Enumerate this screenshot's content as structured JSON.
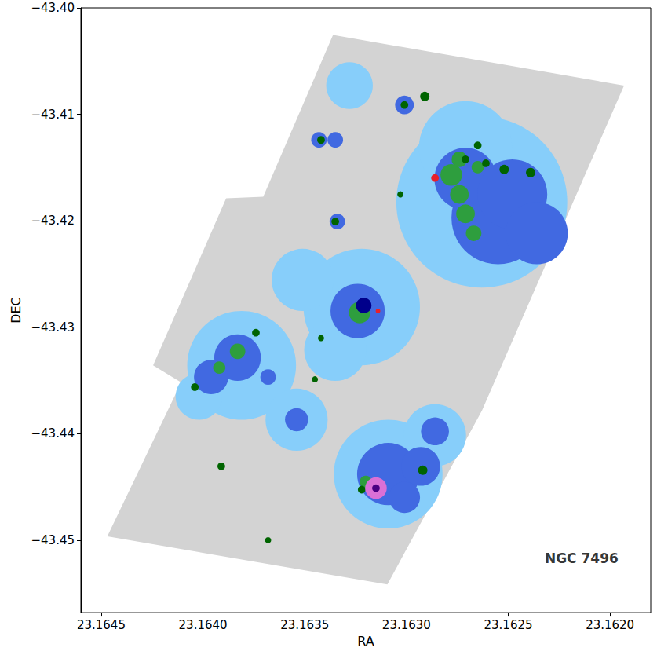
{
  "chart_data": {
    "type": "scatter",
    "x_label": "RA",
    "y_label": "DEC",
    "xlim": [
      23.1618,
      23.1646
    ],
    "ylim": [
      -43.4568,
      -43.4
    ],
    "xticks": [
      23.1645,
      {
        "value": 23.164,
        "label": "23.1640"
      },
      23.1635,
      {
        "value": 23.163,
        "label": "23.1630"
      },
      23.1625,
      {
        "value": 23.162,
        "label": "23.1620"
      }
    ],
    "yticks": [
      {
        "value": -43.45,
        "label": "−43.45"
      },
      {
        "value": -43.44,
        "label": "−43.44"
      },
      {
        "value": -43.43,
        "label": "−43.43"
      },
      {
        "value": -43.42,
        "label": "−43.42"
      },
      {
        "value": -43.41,
        "label": "−43.41"
      },
      {
        "value": -43.4,
        "label": "−43.40"
      }
    ],
    "grid": false,
    "annotations": [
      {
        "text": "NGC 7496",
        "x": 23.16214,
        "y": -43.45168
      }
    ],
    "series": [
      {
        "type": "polygon",
        "color": "#d3d3d3",
        "x": [
          23.163361,
          23.161931,
          23.162629,
          23.163094,
          23.16447,
          23.164107,
          23.164245,
          23.163886,
          23.163704
        ],
        "y": [
          -43.40255,
          -43.4073,
          -43.43781,
          -43.45416,
          -43.44964,
          -43.43518,
          -43.43358,
          -43.41788,
          -43.41774
        ]
      },
      {
        "type": "circle",
        "color": "#87cefa",
        "x": [
          23.16322,
          23.16263,
          23.16271,
          23.16381,
          23.16309,
          23.16286,
          23.16351,
          23.16354,
          23.16328,
          23.16402,
          23.16335
        ],
        "y": [
          -43.4281,
          -43.41825,
          -43.41314,
          -43.43358,
          -43.44379,
          -43.44014,
          -43.42555,
          -43.43868,
          -43.4073,
          -43.4365,
          -43.43212
        ],
        "radius": [
          0.00547,
          0.00803,
          0.00438,
          0.00511,
          0.00511,
          0.00292,
          0.00292,
          0.00292,
          0.00219,
          0.00219,
          0.00292
        ]
      },
      {
        "type": "circle",
        "color": "#4169e1",
        "x": [
          23.16324,
          23.16255,
          23.16271,
          23.16248,
          23.16236,
          23.16383,
          23.16396,
          23.16309,
          23.16293,
          23.16301,
          23.16301,
          23.16343,
          23.16335,
          23.16334,
          23.16286,
          23.16354,
          23.16368
        ],
        "y": [
          -43.42847,
          -43.41971,
          -43.41606,
          -43.41752,
          -43.42117,
          -43.43285,
          -43.43467,
          -43.44379,
          -43.44306,
          -43.44598,
          -43.40912,
          -43.41241,
          -43.41241,
          -43.42007,
          -43.43978,
          -43.43868,
          -43.43467
        ],
        "radius": [
          0.00255,
          0.00438,
          0.00292,
          0.00328,
          0.00292,
          0.00219,
          0.00161,
          0.00292,
          0.00182,
          0.00146,
          0.00088,
          0.00073,
          0.00073,
          0.00073,
          0.00131,
          0.00109,
          0.00073
        ]
      },
      {
        "type": "circle",
        "color": "#2e9e3e",
        "x": [
          23.16323,
          23.16278,
          23.16274,
          23.16271,
          23.16267,
          23.16274,
          23.16265,
          23.16383,
          23.16392,
          23.1632
        ],
        "y": [
          -43.42861,
          -43.41569,
          -43.41752,
          -43.41934,
          -43.42117,
          -43.41423,
          -43.41496,
          -43.43226,
          -43.43379,
          -43.44452
        ],
        "radius": [
          0.00102,
          0.00102,
          0.00088,
          0.00088,
          0.00073,
          0.00073,
          0.00058,
          0.00073,
          0.00058,
          0.00058
        ]
      },
      {
        "type": "circle",
        "color": "#006400",
        "x": [
          23.16291,
          23.16301,
          23.16265,
          23.16252,
          23.16239,
          23.16261,
          23.16335,
          23.16342,
          23.16374,
          23.16342,
          23.16404,
          23.16303,
          23.16345,
          23.16391,
          23.16368,
          23.16292,
          23.16322,
          23.16271
        ],
        "y": [
          -43.40832,
          -43.40912,
          -43.41292,
          -43.41518,
          -43.41547,
          -43.4146,
          -43.42007,
          -43.41241,
          -43.43051,
          -43.43102,
          -43.43562,
          -43.41752,
          -43.43489,
          -43.44306,
          -43.45,
          -43.44343,
          -43.44525,
          -43.41423
        ],
        "radius": [
          0.00044,
          0.00036,
          0.00036,
          0.00044,
          0.00044,
          0.00036,
          0.00036,
          0.00036,
          0.00036,
          0.00029,
          0.00036,
          0.00029,
          0.00029,
          0.00036,
          0.00029,
          0.00044,
          0.00036,
          0.00036
        ]
      },
      {
        "type": "circle",
        "color": "#00008b",
        "x": [
          23.16321
        ],
        "y": [
          -43.42795
        ],
        "radius": [
          0.00073
        ]
      },
      {
        "type": "circle",
        "color": "#e8202a",
        "x": [
          23.16286,
          23.16314
        ],
        "y": [
          -43.41598,
          -43.42847
        ],
        "radius": [
          0.00036,
          0.00022
        ]
      },
      {
        "type": "circle",
        "color": "#da70d6",
        "x": [
          23.16315
        ],
        "y": [
          -43.44511
        ],
        "radius": [
          0.00102
        ]
      },
      {
        "type": "circle",
        "color": "#4b0082",
        "x": [
          23.16315
        ],
        "y": [
          -43.44511
        ],
        "radius": [
          0.00036
        ]
      }
    ]
  }
}
